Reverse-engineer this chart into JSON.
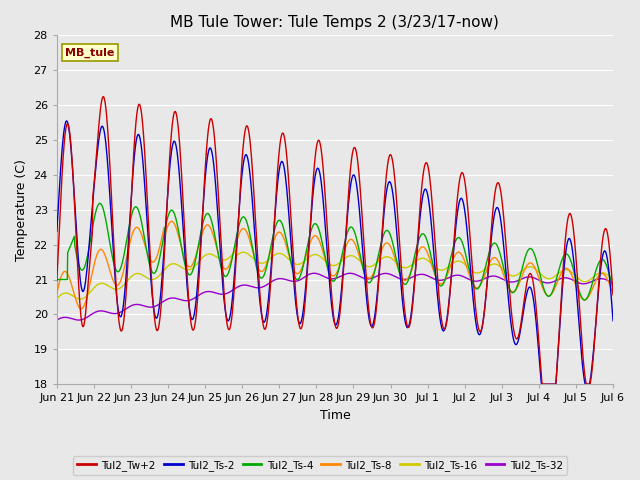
{
  "title": "MB Tule Tower: Tule Temps 2 (3/23/17-now)",
  "xlabel": "Time",
  "ylabel": "Temperature (C)",
  "ylim": [
    18.0,
    28.0
  ],
  "yticks": [
    18.0,
    19.0,
    20.0,
    21.0,
    22.0,
    23.0,
    24.0,
    25.0,
    26.0,
    27.0,
    28.0
  ],
  "xtick_labels": [
    "Jun 21",
    "Jun 22",
    "Jun 23",
    "Jun 24",
    "Jun 25",
    "Jun 26",
    "Jun 27",
    "Jun 28",
    "Jun 29",
    "Jun 30",
    "Jul 1",
    "Jul 2",
    "Jul 3",
    "Jul 4",
    "Jul 5",
    "Jul 6"
  ],
  "series_colors": {
    "Tul2_Tw+2": "#cc0000",
    "Tul2_Ts-2": "#0000cc",
    "Tul2_Ts-4": "#00aa00",
    "Tul2_Ts-8": "#ff8800",
    "Tul2_Ts-16": "#cccc00",
    "Tul2_Ts-32": "#9900cc"
  },
  "legend_label": "MB_tule",
  "legend_label_color": "#880000",
  "legend_bg": "#ffffcc",
  "legend_border": "#999900",
  "plot_bg": "#e8e8e8",
  "grid_color": "#ffffff",
  "title_fontsize": 11,
  "axis_fontsize": 9,
  "tick_fontsize": 8,
  "line_width": 1.0
}
